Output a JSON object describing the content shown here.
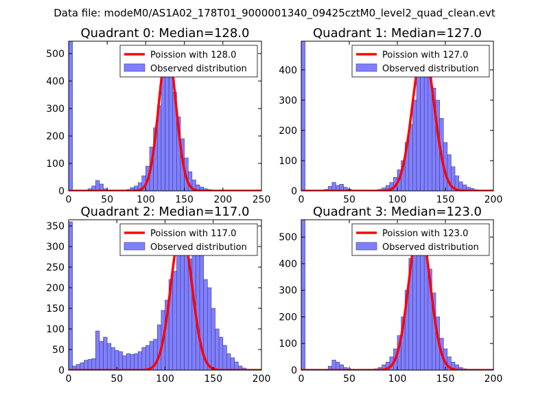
{
  "chart_data": {
    "suptitle": "Data file: modeM0/AS1A02_178T01_9000001340_09425cztM0_level2_quad_clean.evt",
    "colors": {
      "bars": "#8080ff",
      "bar_edge": "#3a3a8a",
      "curve": "#ff0000",
      "axes": "#000000"
    },
    "panels": [
      {
        "type": "bar",
        "title": "Quadrant 0: Median=128.0",
        "xlim": [
          0,
          250
        ],
        "ylim": [
          0,
          545
        ],
        "xticks": [
          0,
          50,
          100,
          150,
          200,
          250
        ],
        "yticks": [
          0,
          100,
          200,
          300,
          400,
          500
        ],
        "bin_width": 5,
        "bins": [
          [
            0,
            545
          ],
          [
            25,
            8
          ],
          [
            30,
            18
          ],
          [
            35,
            38
          ],
          [
            40,
            25
          ],
          [
            45,
            8
          ],
          [
            75,
            5
          ],
          [
            80,
            12
          ],
          [
            85,
            18
          ],
          [
            90,
            30
          ],
          [
            95,
            55
          ],
          [
            100,
            90
          ],
          [
            105,
            160
          ],
          [
            110,
            230
          ],
          [
            115,
            310
          ],
          [
            120,
            420
          ],
          [
            125,
            480
          ],
          [
            130,
            440
          ],
          [
            135,
            360
          ],
          [
            140,
            270
          ],
          [
            145,
            190
          ],
          [
            150,
            120
          ],
          [
            155,
            70
          ],
          [
            160,
            40
          ],
          [
            165,
            22
          ],
          [
            170,
            14
          ],
          [
            175,
            8
          ],
          [
            180,
            5
          ],
          [
            185,
            3
          ],
          [
            190,
            2
          ]
        ],
        "curve": {
          "label": "Poission with 128.0",
          "center": 128,
          "peak": 515,
          "sigma": 11.3,
          "x_from": 0,
          "x_to": 250
        },
        "legend": {
          "curve": "Poission with 128.0",
          "bars": "Observed distribution",
          "loc": "upper right"
        }
      },
      {
        "type": "bar",
        "title": "Quadrant 1: Median=127.0",
        "xlim": [
          0,
          200
        ],
        "ylim": [
          0,
          495
        ],
        "xticks": [
          0,
          50,
          100,
          150,
          200
        ],
        "yticks": [
          0,
          100,
          200,
          300,
          400
        ],
        "bin_width": 4,
        "bins": [
          [
            0,
            495
          ],
          [
            24,
            5
          ],
          [
            28,
            15
          ],
          [
            32,
            28
          ],
          [
            36,
            18
          ],
          [
            40,
            22
          ],
          [
            44,
            12
          ],
          [
            48,
            6
          ],
          [
            80,
            5
          ],
          [
            84,
            10
          ],
          [
            88,
            18
          ],
          [
            92,
            28
          ],
          [
            96,
            45
          ],
          [
            100,
            70
          ],
          [
            104,
            100
          ],
          [
            108,
            160
          ],
          [
            112,
            220
          ],
          [
            116,
            300
          ],
          [
            120,
            380
          ],
          [
            124,
            440
          ],
          [
            128,
            420
          ],
          [
            132,
            400
          ],
          [
            136,
            340
          ],
          [
            140,
            300
          ],
          [
            144,
            240
          ],
          [
            148,
            160
          ],
          [
            152,
            120
          ],
          [
            156,
            80
          ],
          [
            160,
            50
          ],
          [
            164,
            30
          ],
          [
            168,
            20
          ],
          [
            172,
            12
          ],
          [
            176,
            8
          ],
          [
            180,
            4
          ]
        ],
        "curve": {
          "label": "Poission with 127.0",
          "center": 127,
          "peak": 472,
          "sigma": 11.27,
          "x_from": 0,
          "x_to": 200
        },
        "legend": {
          "curve": "Poission with 127.0",
          "bars": "Observed distribution",
          "loc": "upper right"
        }
      },
      {
        "type": "bar",
        "title": "Quadrant 2: Median=117.0",
        "xlim": [
          0,
          200
        ],
        "ylim": [
          0,
          365
        ],
        "xticks": [
          0,
          50,
          100,
          150,
          200
        ],
        "yticks": [
          0,
          50,
          100,
          150,
          200,
          250,
          300,
          350
        ],
        "bin_width": 4,
        "bins": [
          [
            0,
            360
          ],
          [
            4,
            10
          ],
          [
            8,
            14
          ],
          [
            12,
            18
          ],
          [
            16,
            24
          ],
          [
            20,
            26
          ],
          [
            24,
            28
          ],
          [
            28,
            95
          ],
          [
            32,
            70
          ],
          [
            36,
            80
          ],
          [
            40,
            65
          ],
          [
            44,
            55
          ],
          [
            48,
            48
          ],
          [
            52,
            45
          ],
          [
            56,
            35
          ],
          [
            60,
            40
          ],
          [
            64,
            38
          ],
          [
            68,
            40
          ],
          [
            72,
            45
          ],
          [
            76,
            55
          ],
          [
            80,
            60
          ],
          [
            84,
            70
          ],
          [
            88,
            75
          ],
          [
            92,
            110
          ],
          [
            96,
            145
          ],
          [
            100,
            170
          ],
          [
            104,
            220
          ],
          [
            108,
            240
          ],
          [
            112,
            320
          ],
          [
            116,
            330
          ],
          [
            120,
            300
          ],
          [
            124,
            270
          ],
          [
            128,
            320
          ],
          [
            132,
            300
          ],
          [
            136,
            280
          ],
          [
            140,
            220
          ],
          [
            144,
            200
          ],
          [
            148,
            150
          ],
          [
            152,
            100
          ],
          [
            156,
            80
          ],
          [
            160,
            60
          ],
          [
            164,
            40
          ],
          [
            168,
            30
          ],
          [
            172,
            20
          ],
          [
            176,
            10
          ],
          [
            180,
            5
          ]
        ],
        "curve": {
          "label": "Poission with 117.0",
          "center": 117,
          "peak": 345,
          "sigma": 10.82,
          "x_from": 0,
          "x_to": 200
        },
        "legend": {
          "curve": "Poission with 117.0",
          "bars": "Observed distribution",
          "loc": "upper right"
        }
      },
      {
        "type": "bar",
        "title": "Quadrant 3: Median=123.0",
        "xlim": [
          0,
          200
        ],
        "ylim": [
          0,
          565
        ],
        "xticks": [
          0,
          50,
          100,
          150,
          200
        ],
        "yticks": [
          0,
          100,
          200,
          300,
          400,
          500
        ],
        "bin_width": 4,
        "bins": [
          [
            0,
            565
          ],
          [
            28,
            15
          ],
          [
            32,
            38
          ],
          [
            36,
            30
          ],
          [
            40,
            20
          ],
          [
            44,
            10
          ],
          [
            48,
            5
          ],
          [
            76,
            5
          ],
          [
            80,
            10
          ],
          [
            84,
            20
          ],
          [
            88,
            30
          ],
          [
            92,
            50
          ],
          [
            96,
            80
          ],
          [
            100,
            130
          ],
          [
            104,
            200
          ],
          [
            108,
            300
          ],
          [
            112,
            420
          ],
          [
            116,
            460
          ],
          [
            120,
            500
          ],
          [
            124,
            510
          ],
          [
            128,
            520
          ],
          [
            132,
            380
          ],
          [
            136,
            290
          ],
          [
            140,
            200
          ],
          [
            144,
            120
          ],
          [
            148,
            80
          ],
          [
            152,
            50
          ],
          [
            156,
            30
          ],
          [
            160,
            20
          ],
          [
            164,
            10
          ],
          [
            168,
            5
          ]
        ],
        "curve": {
          "label": "Poission with 123.0",
          "center": 123,
          "peak": 545,
          "sigma": 11.09,
          "x_from": 0,
          "x_to": 200
        },
        "legend": {
          "curve": "Poission with 123.0",
          "bars": "Observed distribution",
          "loc": "upper right"
        }
      }
    ]
  }
}
